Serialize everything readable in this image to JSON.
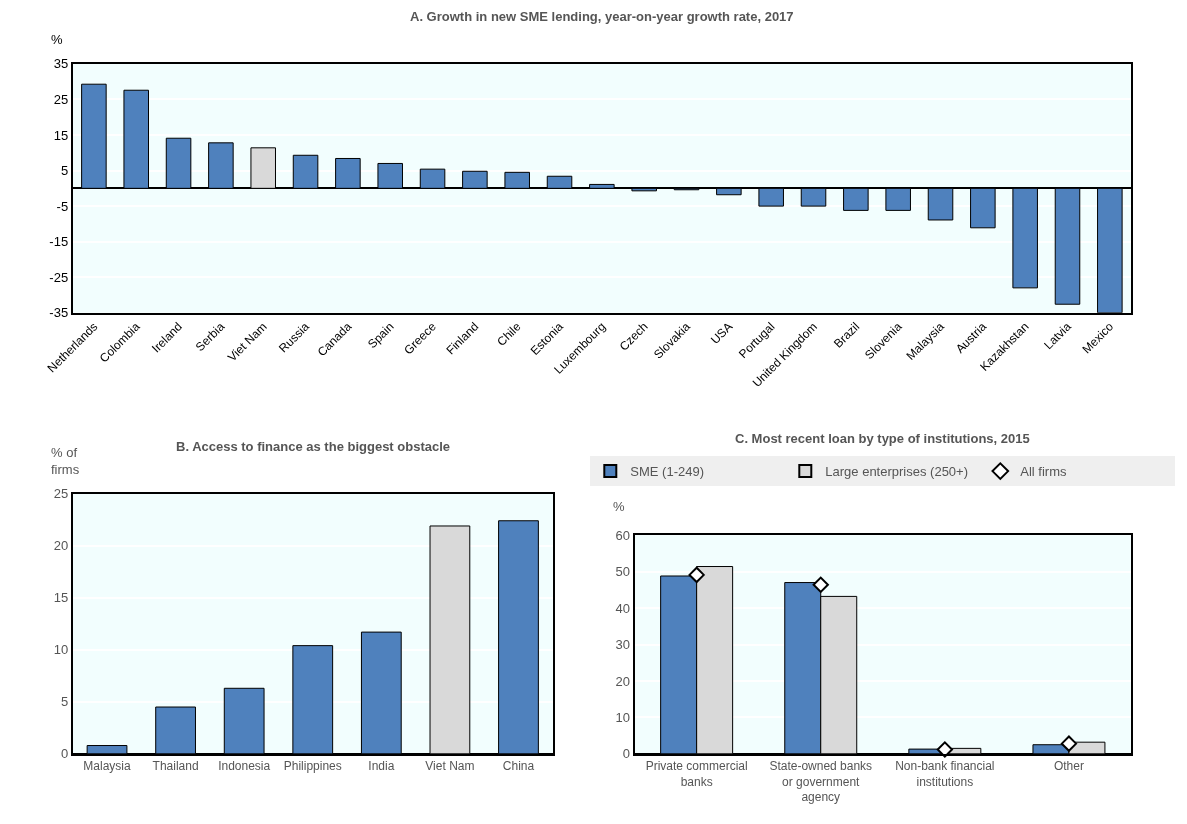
{
  "chart_data": [
    {
      "type": "bar",
      "title": "A. Growth in new SME lending, year-on-year growth rate, 2017",
      "ylabel": "%",
      "categories": [
        "Netherlands",
        "Colombia",
        "Ireland",
        "Serbia",
        "Viet Nam",
        "Russia",
        "Canada",
        "Spain",
        "Greece",
        "Finland",
        "Chile",
        "Estonia",
        "Luxembourg",
        "Czech",
        "Slovakia",
        "USA",
        "Portugal",
        "United Kingdom",
        "Brazil",
        "Slovenia",
        "Malaysia",
        "Austria",
        "Kazakhstan",
        "Latvia",
        "Mexico"
      ],
      "values": [
        29.3,
        27.6,
        14.1,
        12.8,
        11.4,
        9.3,
        8.4,
        7.0,
        5.4,
        4.8,
        4.5,
        3.4,
        1.1,
        -0.7,
        -0.4,
        -1.8,
        -5.0,
        -5.0,
        -6.2,
        -6.2,
        -8.9,
        -11.1,
        -28.0,
        -32.6,
        -35
      ],
      "colors": [
        "#4f81bd",
        "#4f81bd",
        "#4f81bd",
        "#4f81bd",
        "#d9d9d9",
        "#4f81bd",
        "#4f81bd",
        "#4f81bd",
        "#4f81bd",
        "#4f81bd",
        "#4f81bd",
        "#4f81bd",
        "#4f81bd",
        "#4f81bd",
        "#4f81bd",
        "#4f81bd",
        "#4f81bd",
        "#4f81bd",
        "#4f81bd",
        "#4f81bd",
        "#4f81bd",
        "#4f81bd",
        "#4f81bd",
        "#4f81bd",
        "#4f81bd"
      ],
      "ylim": [
        -35,
        35
      ],
      "yticks": [
        -35,
        -25,
        -15,
        -5,
        5,
        15,
        25,
        35
      ],
      "grid": "y",
      "legend": false
    },
    {
      "type": "bar",
      "title": "B. Access to finance as the biggest obstacle",
      "ylabel": "% of firms",
      "categories": [
        "Malaysia",
        "Thailand",
        "Indonesia",
        "Philippines",
        "India",
        "Viet Nam",
        "China"
      ],
      "values": [
        0.8,
        4.5,
        6.3,
        10.4,
        11.7,
        21.9,
        22.4
      ],
      "colors": [
        "#4f81bd",
        "#4f81bd",
        "#4f81bd",
        "#4f81bd",
        "#4f81bd",
        "#d9d9d9",
        "#4f81bd"
      ],
      "ylim": [
        0,
        25
      ],
      "yticks": [
        0,
        5,
        10,
        15,
        20,
        25
      ],
      "grid": "y",
      "legend": false
    },
    {
      "type": "bar",
      "title": "C. Most recent loan by type of institutions, 2015",
      "ylabel": "%",
      "categories": [
        "Private commercial banks",
        "State-owned banks or government agency",
        "Non-bank financial institutions",
        "Other"
      ],
      "series": [
        {
          "name": "SME (1-249)",
          "color": "#4f81bd",
          "values": [
            48.8,
            47.0,
            1.3,
            2.5
          ]
        },
        {
          "name": "Large enterprises (250+)",
          "color": "#d9d9d9",
          "values": [
            51.4,
            43.2,
            1.5,
            3.2
          ]
        },
        {
          "name": "All firms",
          "type": "scatter",
          "marker": "diamond",
          "color": "#ffffff",
          "values": [
            49.1,
            46.4,
            1.2,
            2.8
          ]
        }
      ],
      "ylim": [
        0,
        60
      ],
      "yticks": [
        0,
        10,
        20,
        30,
        40,
        50,
        60
      ],
      "grid": "y",
      "legend": "top"
    }
  ]
}
